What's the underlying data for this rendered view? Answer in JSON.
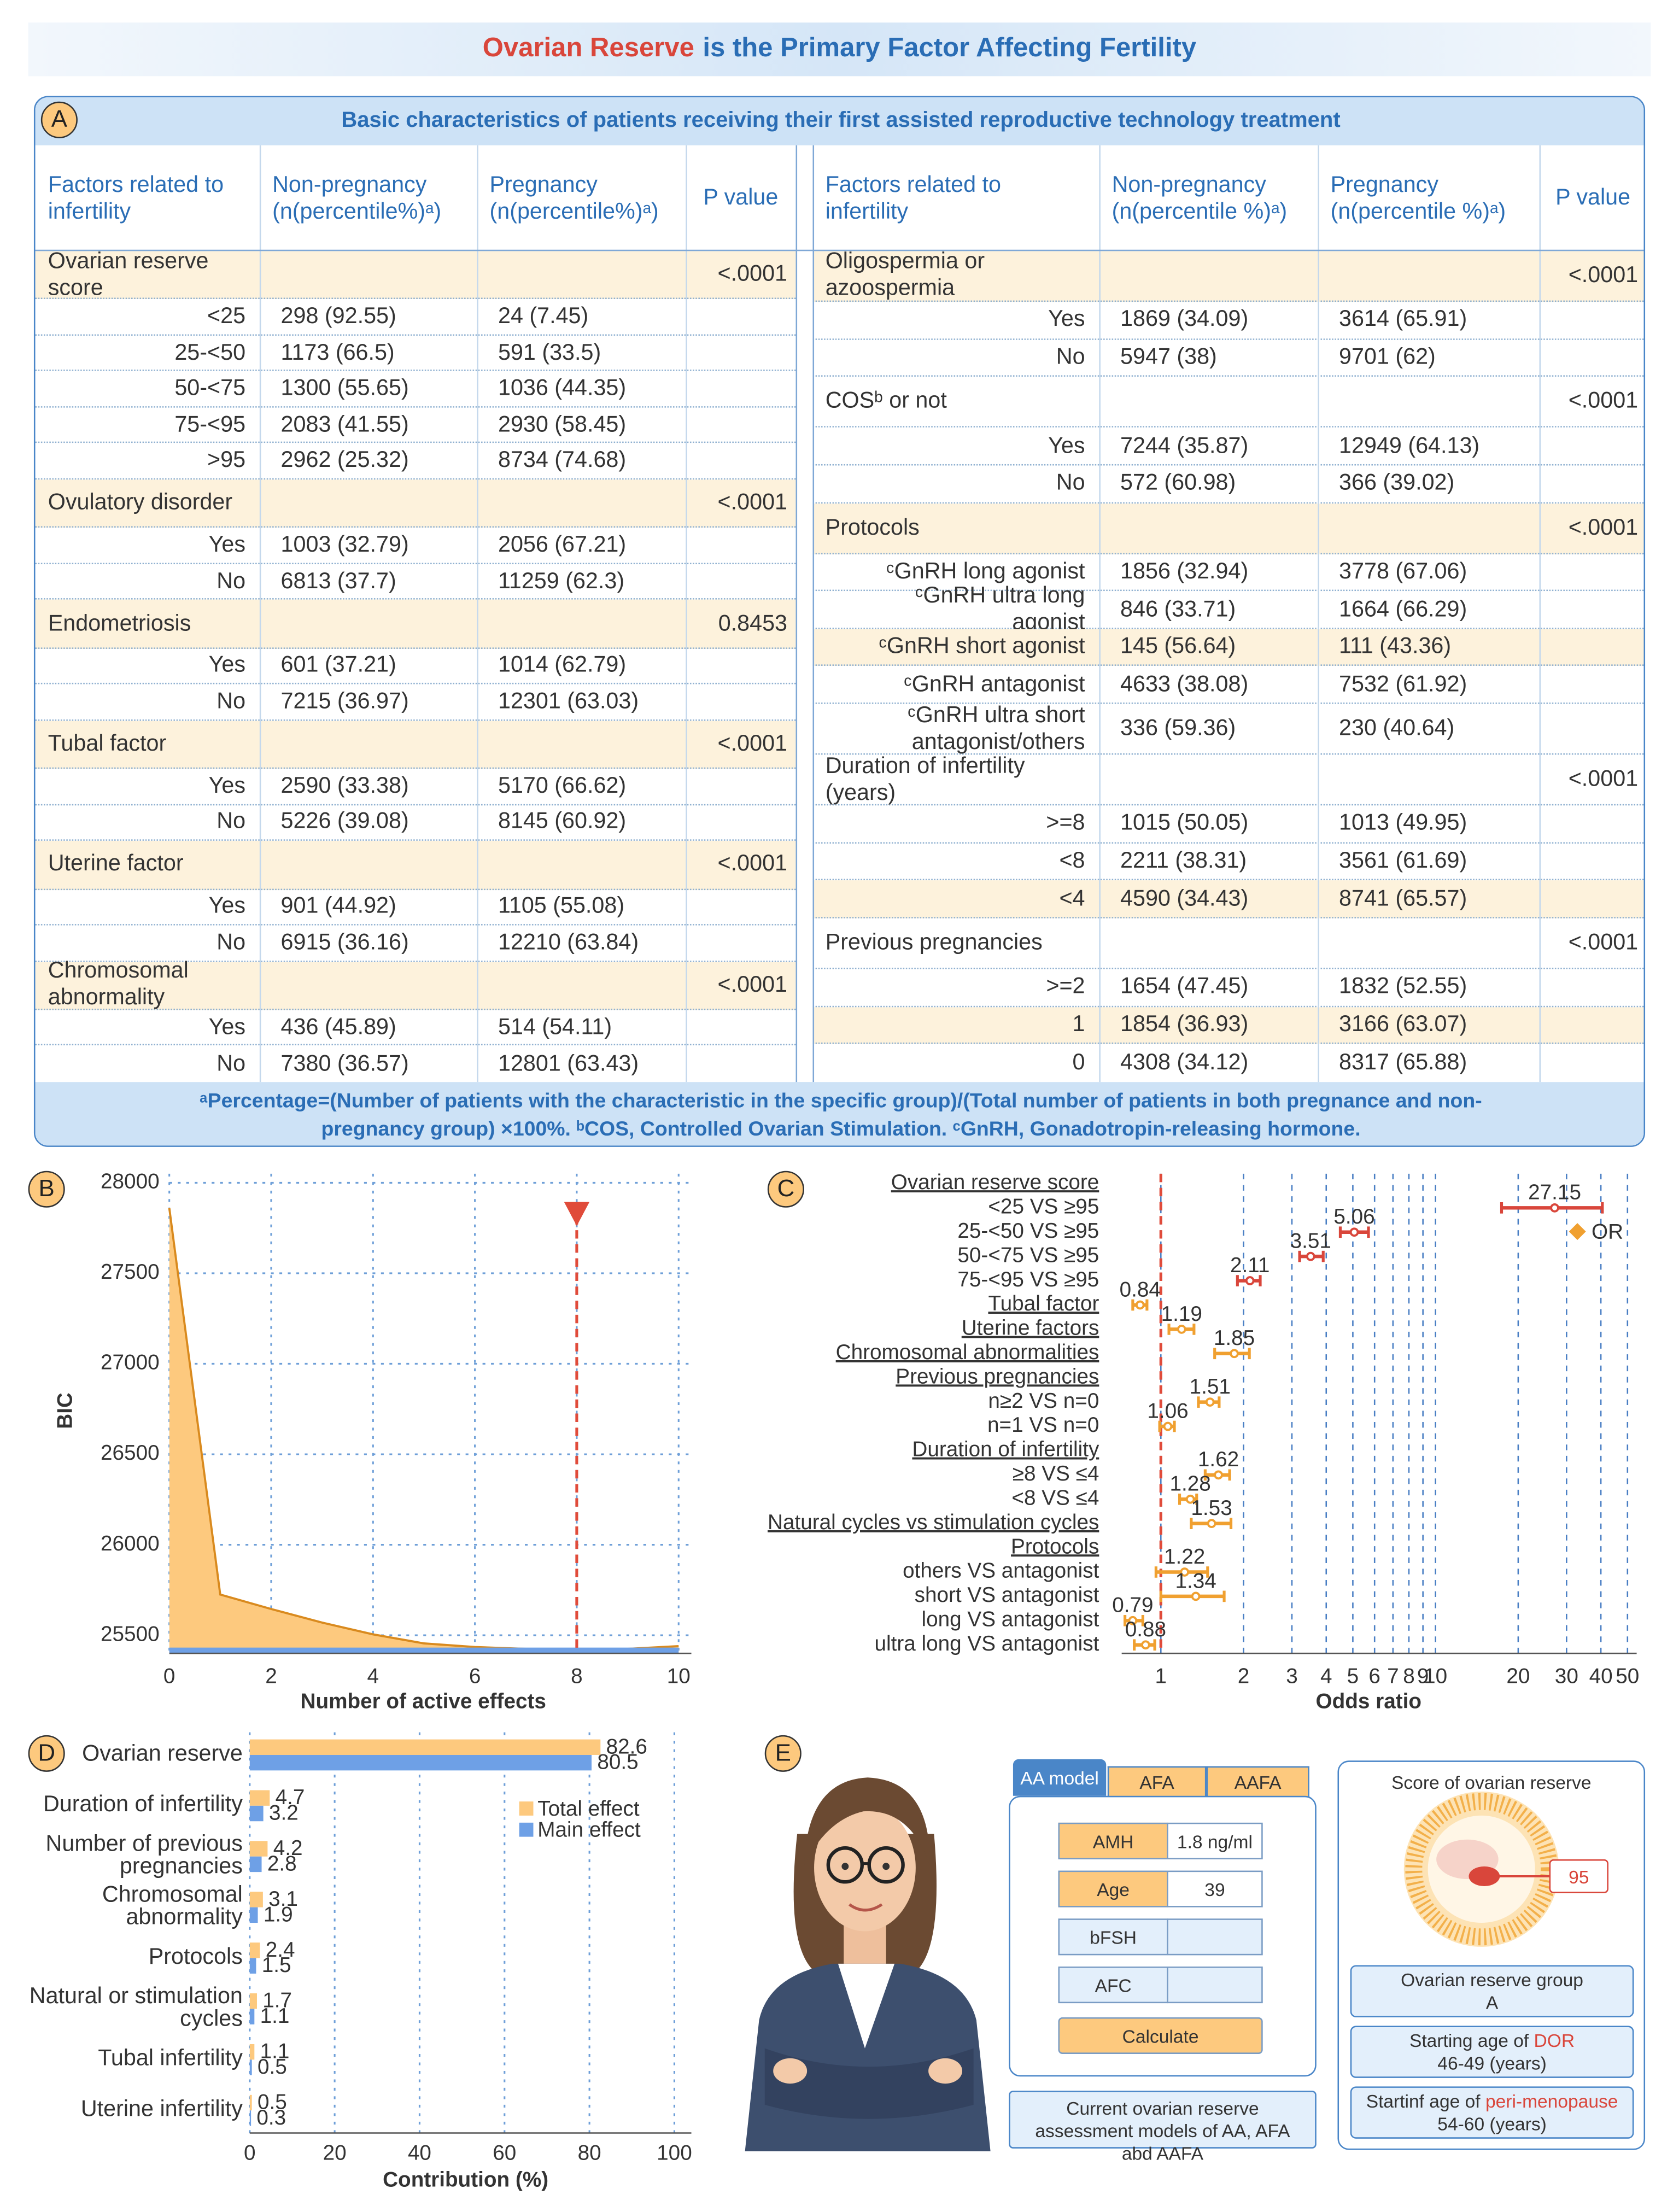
{
  "title_parts": [
    "Ovarian Reserve",
    "is the Primary Factor Affecting Fertility"
  ],
  "panel_labels": [
    "A",
    "B",
    "C",
    "D",
    "E"
  ],
  "table": {
    "caption": "Basic characteristics of patients receiving their first assisted reproductive technology treatment",
    "left": {
      "header": [
        "Factors related to infertility",
        "Non-pregnancy (n(percentile%)ᵃ)",
        "Pregnancy (n(percentile%)ᵃ)",
        "P value"
      ],
      "rows": [
        {
          "label": "Ovarian reserve score",
          "p": "<.0001",
          "shaded": true
        },
        {
          "label": "<25",
          "non_pregnancy": "298 (92.55)",
          "pregnancy": "24 (7.45)"
        },
        {
          "label": "25-<50",
          "non_pregnancy": "1173 (66.5)",
          "pregnancy": "591 (33.5)"
        },
        {
          "label": "50-<75",
          "non_pregnancy": "1300 (55.65)",
          "pregnancy": "1036 (44.35)"
        },
        {
          "label": "75-<95",
          "non_pregnancy": "2083 (41.55)",
          "pregnancy": "2930 (58.45)"
        },
        {
          "label": ">95",
          "non_pregnancy": "2962 (25.32)",
          "pregnancy": "8734 (74.68)"
        },
        {
          "label": "Ovulatory disorder",
          "p": "<.0001",
          "shaded": true
        },
        {
          "label": "Yes",
          "non_pregnancy": "1003 (32.79)",
          "pregnancy": "2056 (67.21)"
        },
        {
          "label": "No",
          "non_pregnancy": "6813 (37.7)",
          "pregnancy": "11259 (62.3)"
        },
        {
          "label": "Endometriosis",
          "p": "0.8453",
          "shaded": true
        },
        {
          "label": "Yes",
          "non_pregnancy": "601 (37.21)",
          "pregnancy": "1014 (62.79)"
        },
        {
          "label": "No",
          "non_pregnancy": "7215 (36.97)",
          "pregnancy": "12301 (63.03)"
        },
        {
          "label": "Tubal factor",
          "p": "<.0001",
          "shaded": true
        },
        {
          "label": "Yes",
          "non_pregnancy": "2590 (33.38)",
          "pregnancy": "5170 (66.62)"
        },
        {
          "label": "No",
          "non_pregnancy": "5226 (39.08)",
          "pregnancy": "8145 (60.92)"
        },
        {
          "label": "Uterine factor",
          "p": "<.0001",
          "shaded": true
        },
        {
          "label": "Yes",
          "non_pregnancy": "901 (44.92)",
          "pregnancy": "1105 (55.08)"
        },
        {
          "label": "No",
          "non_pregnancy": "6915 (36.16)",
          "pregnancy": "12210 (63.84)"
        },
        {
          "label": "Chromosomal abnormality",
          "p": "<.0001",
          "shaded": true
        },
        {
          "label": "Yes",
          "non_pregnancy": "436 (45.89)",
          "pregnancy": "514 (54.11)"
        },
        {
          "label": "No",
          "non_pregnancy": "7380 (36.57)",
          "pregnancy": "12801 (63.43)"
        }
      ]
    },
    "right": {
      "header": [
        "Factors related to infertility",
        "Non-pregnancy (n(percentile %)ᵃ)",
        "Pregnancy (n(percentile %)ᵃ)",
        "P value"
      ],
      "rows": [
        {
          "label": "Oligospermia or azoospermia",
          "p": "<.0001",
          "shaded": true
        },
        {
          "label": "Yes",
          "non_pregnancy": "1869 (34.09)",
          "pregnancy": "3614 (65.91)"
        },
        {
          "label": "No",
          "non_pregnancy": "5947 (38)",
          "pregnancy": "9701 (62)"
        },
        {
          "label": "COSᵇ or not",
          "p": "<.0001"
        },
        {
          "label": "Yes",
          "non_pregnancy": "7244 (35.87)",
          "pregnancy": "12949 (64.13)"
        },
        {
          "label": "No",
          "non_pregnancy": "572 (60.98)",
          "pregnancy": "366 (39.02)"
        },
        {
          "label": "Protocols",
          "p": "<.0001",
          "shaded": true
        },
        {
          "label": "ᶜGnRH long agonist",
          "non_pregnancy": "1856 (32.94)",
          "pregnancy": "3778 (67.06)"
        },
        {
          "label": "ᶜGnRH ultra long agonist",
          "non_pregnancy": "846 (33.71)",
          "pregnancy": "1664 (66.29)"
        },
        {
          "label": "ᶜGnRH short agonist",
          "non_pregnancy": "145 (56.64)",
          "pregnancy": "111 (43.36)",
          "shaded": true
        },
        {
          "label": "ᶜGnRH antagonist",
          "non_pregnancy": "4633 (38.08)",
          "pregnancy": "7532 (61.92)"
        },
        {
          "label": "ᶜGnRH ultra short antagonist/others",
          "non_pregnancy": "336 (59.36)",
          "pregnancy": "230 (40.64)"
        },
        {
          "label": "Duration of infertility (years)",
          "p": "<.0001"
        },
        {
          "label": ">=8",
          "non_pregnancy": "1015 (50.05)",
          "pregnancy": "1013 (49.95)"
        },
        {
          "label": "<8",
          "non_pregnancy": "2211 (38.31)",
          "pregnancy": "3561 (61.69)"
        },
        {
          "label": "<4",
          "non_pregnancy": "4590 (34.43)",
          "pregnancy": "8741 (65.57)",
          "shaded": true
        },
        {
          "label": "Previous pregnancies",
          "p": "<.0001"
        },
        {
          "label": ">=2",
          "non_pregnancy": "1654 (47.45)",
          "pregnancy": "1832 (52.55)"
        },
        {
          "label": "1",
          "non_pregnancy": "1854 (36.93)",
          "pregnancy": "3166 (63.07)",
          "shaded": true
        },
        {
          "label": "0",
          "non_pregnancy": "4308 (34.12)",
          "pregnancy": "8317 (65.88)"
        }
      ]
    },
    "footnote": "ᵃPercentage=(Number of patients with the characteristic in the specific group)/(Total number of patients in both pregnance and non-pregnancy group) ×100%. ᵇCOS, Controlled Ovarian Stimulation. ᶜGnRH, Gonadotropin-releasing hormone."
  },
  "chart_data": [
    {
      "type": "area",
      "xlabel": "Number of active effects",
      "ylabel": "BIC",
      "x": [
        0,
        1,
        2,
        3,
        4,
        5,
        6,
        7,
        8,
        9,
        10
      ],
      "series": [
        {
          "color": "#fdc97e",
          "line_color": "#d98a1e",
          "values": [
            27860,
            25725,
            25645,
            25570,
            25505,
            25455,
            25435,
            25425,
            25420,
            25425,
            25440
          ]
        },
        {
          "color": "#6ea0e6",
          "values": [
            25432,
            25432,
            25432,
            25432,
            25432,
            25432,
            25432,
            25432,
            25432,
            25432,
            25432
          ]
        }
      ],
      "xlim": [
        0,
        10.25
      ],
      "ylim": [
        25400,
        28050
      ],
      "xticks": [
        0,
        2,
        4,
        6,
        8,
        10
      ],
      "yticks": [
        25500,
        26000,
        26500,
        27000,
        27500,
        28000
      ],
      "grid": true,
      "vline": 8,
      "vline_color": "#e04b3a"
    },
    {
      "type": "forest",
      "xlabel": "Odds ratio",
      "xscale": "log",
      "xlim": [
        0.72,
        54
      ],
      "xticks": [
        1,
        2,
        3,
        4,
        5,
        6,
        7,
        8,
        9,
        10,
        20,
        30,
        40,
        50
      ],
      "refline": 1,
      "refline_color": "#e04b3a",
      "grid": true,
      "legend": "upper right",
      "categories": [
        "Ovarian reserve score",
        "<25 VS ≥95",
        "25-<50 VS ≥95",
        "50-<75 VS ≥95",
        "75-<95 VS ≥95",
        "Tubal factor",
        "Uterine factors",
        "Chromosomal abnormalities",
        "Previous pregnancies",
        "n≥2 VS n=0",
        "n=1 VS n=0",
        "Duration of infertility",
        "≥8 VS ≤4",
        "<8 VS ≤4",
        "Natural cycles vs stimulation cycles",
        "Protocols",
        "others VS antagonist",
        "short VS antagonist",
        "long VS antagonist",
        "ultra long VS antagonist"
      ],
      "category_levels": [
        1,
        2,
        2,
        2,
        2,
        1,
        1,
        1,
        1,
        2,
        2,
        1,
        2,
        2,
        1,
        1,
        2,
        2,
        2,
        2
      ],
      "label_colors": [
        "#d9463b",
        "#d9463b",
        "#d9463b",
        "#d9463b",
        "#d9463b",
        "#2a5d9f",
        "#2a5d9f",
        "#2a5d9f",
        "#2a5d9f",
        "#2a5d9f",
        "#2a5d9f",
        "#2a5d9f",
        "#2a5d9f",
        "#2a5d9f",
        "#2a5d9f",
        "#2a5d9f",
        "#2a5d9f",
        "#2a5d9f",
        "#2a5d9f",
        "#2a5d9f"
      ],
      "series": [
        {
          "name": "OR",
          "color": "#f0a030",
          "colors": [
            null,
            "#d9463b",
            "#d9463b",
            "#d9463b",
            "#d9463b",
            "#f0a030",
            "#f0a030",
            "#f0a030",
            null,
            "#f0a030",
            "#f0a030",
            null,
            "#f0a030",
            "#f0a030",
            "#f0a030",
            null,
            "#f0a030",
            "#f0a030",
            "#f0a030",
            "#f0a030"
          ],
          "values": [
            null,
            27.15,
            5.06,
            3.51,
            2.11,
            0.84,
            1.19,
            1.85,
            null,
            1.51,
            1.06,
            null,
            1.62,
            1.28,
            1.53,
            null,
            1.22,
            1.34,
            0.79,
            0.88
          ],
          "lower": [
            null,
            17.4,
            4.5,
            3.2,
            1.9,
            0.79,
            1.07,
            1.57,
            null,
            1.37,
            0.99,
            null,
            1.45,
            1.17,
            1.29,
            null,
            0.96,
            1.0,
            0.74,
            0.8
          ],
          "upper": [
            null,
            40.5,
            5.7,
            3.9,
            2.3,
            0.89,
            1.32,
            2.1,
            null,
            1.63,
            1.12,
            null,
            1.78,
            1.35,
            1.8,
            null,
            1.48,
            1.7,
            0.86,
            0.95
          ]
        }
      ]
    },
    {
      "type": "hbar",
      "xlabel": "Contribution (%)",
      "xlim": [
        0,
        104
      ],
      "xticks": [
        0,
        20,
        40,
        60,
        80,
        100
      ],
      "grid": true,
      "legend": "upper right",
      "categories": [
        "Ovarian reserve",
        "Duration of infertility",
        "Number of previous pregnancies",
        "Chromosomal abnormality",
        "Protocols",
        "Natural or stimulation cycles",
        "Tubal infertility",
        "Uterine infertility"
      ],
      "series": [
        {
          "name": "Total effect",
          "color": "#fdc97e",
          "values": [
            82.6,
            4.7,
            4.2,
            3.1,
            2.4,
            1.7,
            1.1,
            0.5
          ]
        },
        {
          "name": "Main effect",
          "color": "#6ea0e6",
          "values": [
            80.5,
            3.2,
            2.8,
            1.9,
            1.5,
            1.1,
            0.5,
            0.3
          ]
        }
      ]
    }
  ],
  "calculator": {
    "tabs": [
      "AA model",
      "AFA",
      "AAFA"
    ],
    "fields": [
      {
        "label": "AMH",
        "value": "1.8 ng/ml"
      },
      {
        "label": "Age",
        "value": "39"
      },
      {
        "label": "bFSH"
      },
      {
        "label": "AFC"
      }
    ],
    "button": "Calculate",
    "caption": "Current ovarian reserve assessment models of AA, AFA abd AAFA",
    "score_title": "Score of ovarian reserve",
    "score": 95,
    "results": [
      {
        "label_parts": [
          "Ovarian reserve group"
        ],
        "value": "A"
      },
      {
        "label_parts": [
          "Starting age of",
          "DOR"
        ],
        "value": "46-49 (years)"
      },
      {
        "label_parts": [
          "Startinf age of",
          "peri-menopause"
        ],
        "value": "54-60 (years)"
      }
    ]
  }
}
